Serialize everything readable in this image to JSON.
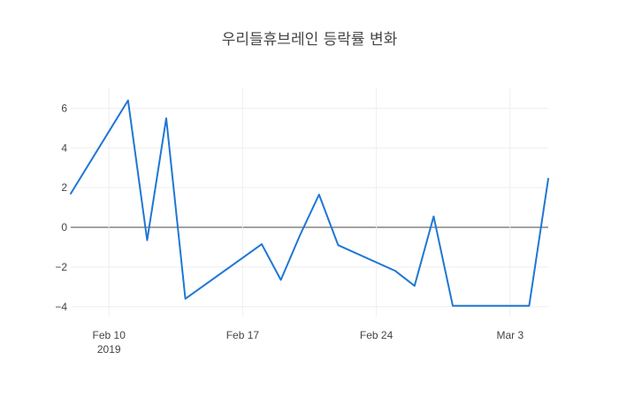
{
  "chart_data": {
    "type": "line",
    "title": "우리들휴브레인 등락률 변화",
    "xlabel": "",
    "ylabel": "",
    "xlim": [
      "2019-02-08",
      "2019-03-05"
    ],
    "ylim": [
      -4.5,
      7
    ],
    "y_ticks": [
      6,
      4,
      2,
      0,
      -2,
      -4
    ],
    "y_tick_labels": [
      "6",
      "4",
      "2",
      "0",
      "−2",
      "−4"
    ],
    "x_ticks": [
      {
        "date": "2019-02-10",
        "label": "Feb 10",
        "sublabel": "2019"
      },
      {
        "date": "2019-02-17",
        "label": "Feb 17",
        "sublabel": ""
      },
      {
        "date": "2019-02-24",
        "label": "Feb 24",
        "sublabel": ""
      },
      {
        "date": "2019-03-03",
        "label": "Mar 3",
        "sublabel": ""
      }
    ],
    "grid": true,
    "zero_line": true,
    "series": [
      {
        "color": "#1f77d4",
        "x": [
          "2019-02-08",
          "2019-02-11",
          "2019-02-12",
          "2019-02-13",
          "2019-02-14",
          "2019-02-18",
          "2019-02-19",
          "2019-02-20",
          "2019-02-21",
          "2019-02-22",
          "2019-02-25",
          "2019-02-26",
          "2019-02-27",
          "2019-02-28",
          "2019-03-04",
          "2019-03-05"
        ],
        "y": [
          1.7,
          6.4,
          -0.65,
          5.5,
          -3.6,
          -0.85,
          -2.65,
          -0.4,
          1.65,
          -0.9,
          -2.2,
          -2.95,
          0.55,
          -3.95,
          -3.95,
          2.45
        ]
      }
    ]
  }
}
